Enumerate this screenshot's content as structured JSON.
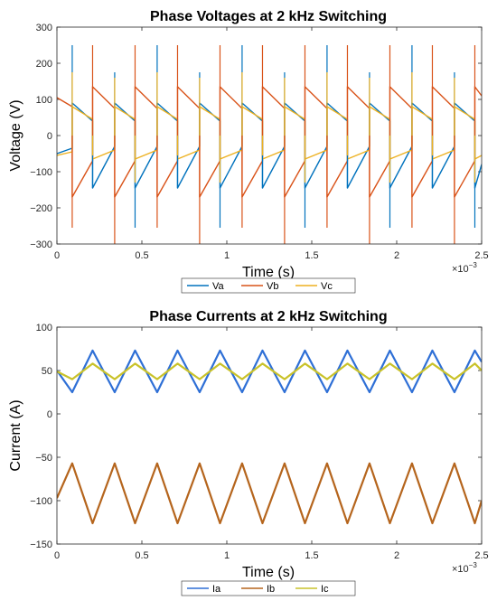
{
  "chart_data": [
    {
      "type": "line",
      "title": "Phase Voltages at 2 kHz Switching",
      "xlabel": "Time (s)",
      "ylabel": "Voltage (V)",
      "x_exponent_label": "×10",
      "x_exponent": "−3",
      "xlim": [
        0,
        2.5
      ],
      "ylim": [
        -300,
        300
      ],
      "xticks": [
        0,
        0.5,
        1,
        1.5,
        2,
        2.5
      ],
      "xtick_labels": [
        "0",
        "0.5",
        "1",
        "1.5",
        "2",
        "2.5"
      ],
      "yticks": [
        -300,
        -200,
        -100,
        0,
        100,
        200,
        300
      ],
      "ytick_labels": [
        "−300",
        "−200",
        "−100",
        "0",
        "100",
        "200",
        "300"
      ],
      "legend_position": "bottom",
      "series": [
        {
          "name": "Va",
          "color": "#0072BD",
          "x": [
            0,
            0.09,
            0.09,
            0.21,
            0.21,
            0.34,
            0.34,
            0.46,
            0.46,
            0.59,
            0.59,
            0.71,
            0.71,
            0.84,
            0.84,
            0.96,
            0.96,
            1.09,
            1.09,
            1.21,
            1.21,
            1.34,
            1.34,
            1.46,
            1.46,
            1.59,
            1.59,
            1.71,
            1.71,
            1.84,
            1.84,
            1.96,
            1.96,
            2.09,
            2.09,
            2.21,
            2.21,
            2.34,
            2.34,
            2.46,
            2.46,
            2.5
          ],
          "y": [
            -50,
            -35,
            90,
            40,
            -145,
            -30,
            90,
            40,
            -145,
            -30,
            90,
            40,
            -145,
            -30,
            90,
            40,
            -145,
            -30,
            90,
            40,
            -145,
            -30,
            90,
            40,
            -145,
            -30,
            90,
            40,
            -145,
            -30,
            90,
            40,
            -145,
            -30,
            90,
            40,
            -145,
            -30,
            90,
            40,
            -145,
            -80
          ]
        },
        {
          "name": "Vb",
          "color": "#D95319",
          "x": [
            0,
            0.09,
            0.09,
            0.21,
            0.21,
            0.34,
            0.34,
            0.46,
            0.46,
            0.59,
            0.59,
            0.71,
            0.71,
            0.84,
            0.84,
            0.96,
            0.96,
            1.09,
            1.09,
            1.21,
            1.21,
            1.34,
            1.34,
            1.46,
            1.46,
            1.59,
            1.59,
            1.71,
            1.71,
            1.84,
            1.84,
            1.96,
            1.96,
            2.09,
            2.09,
            2.21,
            2.21,
            2.34,
            2.34,
            2.46,
            2.46,
            2.5
          ],
          "y": [
            105,
            80,
            -170,
            -70,
            135,
            75,
            -170,
            -70,
            135,
            75,
            -170,
            -70,
            135,
            75,
            -170,
            -70,
            135,
            75,
            -170,
            -70,
            135,
            75,
            -170,
            -70,
            135,
            75,
            -170,
            -70,
            135,
            75,
            -170,
            -70,
            135,
            75,
            -170,
            -70,
            135,
            75,
            -170,
            -70,
            135,
            110
          ]
        },
        {
          "name": "Vc",
          "color": "#EDB120",
          "x": [
            0,
            0.09,
            0.09,
            0.21,
            0.21,
            0.34,
            0.34,
            0.46,
            0.46,
            0.59,
            0.59,
            0.71,
            0.71,
            0.84,
            0.84,
            0.96,
            0.96,
            1.09,
            1.09,
            1.21,
            1.21,
            1.34,
            1.34,
            1.46,
            1.46,
            1.59,
            1.59,
            1.71,
            1.71,
            1.84,
            1.84,
            1.96,
            1.96,
            2.09,
            2.09,
            2.21,
            2.21,
            2.34,
            2.34,
            2.46,
            2.46,
            2.5
          ],
          "y": [
            -55,
            -45,
            80,
            45,
            -65,
            -40,
            80,
            45,
            -65,
            -40,
            80,
            45,
            -65,
            -40,
            80,
            45,
            -65,
            -40,
            80,
            45,
            -65,
            -40,
            80,
            45,
            -65,
            -40,
            80,
            45,
            -65,
            -40,
            80,
            45,
            -65,
            -40,
            80,
            45,
            -65,
            -40,
            80,
            45,
            -65,
            -55
          ]
        }
      ],
      "spikes": [
        {
          "x": 0.09,
          "series": "Va",
          "y": 250
        },
        {
          "x": 0.09,
          "series": "Vb",
          "y": -255
        },
        {
          "x": 0.09,
          "series": "Vc",
          "y": 175
        },
        {
          "x": 0.21,
          "series": "Va",
          "y": -145
        },
        {
          "x": 0.21,
          "series": "Vb",
          "y": 250
        },
        {
          "x": 0.21,
          "series": "Vc",
          "y": -55
        },
        {
          "x": 0.34,
          "series": "Va",
          "y": 175
        },
        {
          "x": 0.34,
          "series": "Vb",
          "y": -300
        },
        {
          "x": 0.34,
          "series": "Vc",
          "y": 160
        },
        {
          "x": 0.46,
          "series": "Va",
          "y": -255
        },
        {
          "x": 0.46,
          "series": "Vb",
          "y": 250
        },
        {
          "x": 0.46,
          "series": "Vc",
          "y": -130
        },
        {
          "x": 0.59,
          "series": "Va",
          "y": 250
        },
        {
          "x": 0.59,
          "series": "Vb",
          "y": -255
        },
        {
          "x": 0.59,
          "series": "Vc",
          "y": 175
        },
        {
          "x": 0.71,
          "series": "Va",
          "y": -145
        },
        {
          "x": 0.71,
          "series": "Vb",
          "y": 250
        },
        {
          "x": 0.71,
          "series": "Vc",
          "y": -55
        },
        {
          "x": 0.84,
          "series": "Va",
          "y": 175
        },
        {
          "x": 0.84,
          "series": "Vb",
          "y": -300
        },
        {
          "x": 0.84,
          "series": "Vc",
          "y": 160
        },
        {
          "x": 0.96,
          "series": "Va",
          "y": -255
        },
        {
          "x": 0.96,
          "series": "Vb",
          "y": 250
        },
        {
          "x": 0.96,
          "series": "Vc",
          "y": -130
        },
        {
          "x": 1.09,
          "series": "Va",
          "y": 250
        },
        {
          "x": 1.09,
          "series": "Vb",
          "y": -255
        },
        {
          "x": 1.09,
          "series": "Vc",
          "y": 175
        },
        {
          "x": 1.21,
          "series": "Va",
          "y": -145
        },
        {
          "x": 1.21,
          "series": "Vb",
          "y": 250
        },
        {
          "x": 1.21,
          "series": "Vc",
          "y": -55
        },
        {
          "x": 1.34,
          "series": "Va",
          "y": 175
        },
        {
          "x": 1.34,
          "series": "Vb",
          "y": -300
        },
        {
          "x": 1.34,
          "series": "Vc",
          "y": 160
        },
        {
          "x": 1.46,
          "series": "Va",
          "y": -255
        },
        {
          "x": 1.46,
          "series": "Vb",
          "y": 250
        },
        {
          "x": 1.46,
          "series": "Vc",
          "y": -130
        },
        {
          "x": 1.59,
          "series": "Va",
          "y": 250
        },
        {
          "x": 1.59,
          "series": "Vb",
          "y": -255
        },
        {
          "x": 1.59,
          "series": "Vc",
          "y": 175
        },
        {
          "x": 1.71,
          "series": "Va",
          "y": -145
        },
        {
          "x": 1.71,
          "series": "Vb",
          "y": 250
        },
        {
          "x": 1.71,
          "series": "Vc",
          "y": -55
        },
        {
          "x": 1.84,
          "series": "Va",
          "y": 175
        },
        {
          "x": 1.84,
          "series": "Vb",
          "y": -300
        },
        {
          "x": 1.84,
          "series": "Vc",
          "y": 160
        },
        {
          "x": 1.96,
          "series": "Va",
          "y": -255
        },
        {
          "x": 1.96,
          "series": "Vb",
          "y": 250
        },
        {
          "x": 1.96,
          "series": "Vc",
          "y": -130
        },
        {
          "x": 2.09,
          "series": "Va",
          "y": 250
        },
        {
          "x": 2.09,
          "series": "Vb",
          "y": -255
        },
        {
          "x": 2.09,
          "series": "Vc",
          "y": 175
        },
        {
          "x": 2.21,
          "series": "Va",
          "y": -145
        },
        {
          "x": 2.21,
          "series": "Vb",
          "y": 250
        },
        {
          "x": 2.21,
          "series": "Vc",
          "y": -55
        },
        {
          "x": 2.34,
          "series": "Va",
          "y": 175
        },
        {
          "x": 2.34,
          "series": "Vb",
          "y": -300
        },
        {
          "x": 2.34,
          "series": "Vc",
          "y": 160
        },
        {
          "x": 2.46,
          "series": "Va",
          "y": -255
        },
        {
          "x": 2.46,
          "series": "Vb",
          "y": 250
        },
        {
          "x": 2.46,
          "series": "Vc",
          "y": -130
        }
      ]
    },
    {
      "type": "line",
      "title": "Phase Currents at 2 kHz Switching",
      "xlabel": "Time (s)",
      "ylabel": "Current (A)",
      "x_exponent_label": "×10",
      "x_exponent": "−3",
      "xlim": [
        0,
        2.5
      ],
      "ylim": [
        -150,
        100
      ],
      "xticks": [
        0,
        0.5,
        1,
        1.5,
        2,
        2.5
      ],
      "xtick_labels": [
        "0",
        "0.5",
        "1",
        "1.5",
        "2",
        "2.5"
      ],
      "yticks": [
        -150,
        -100,
        -50,
        0,
        50,
        100
      ],
      "ytick_labels": [
        "−150",
        "−100",
        "−50",
        "0",
        "50",
        "100"
      ],
      "legend_position": "bottom",
      "series": [
        {
          "name": "Ia",
          "color": "#2E6FD6",
          "x": [
            0,
            0.09,
            0.21,
            0.34,
            0.46,
            0.59,
            0.71,
            0.84,
            0.96,
            1.09,
            1.21,
            1.34,
            1.46,
            1.59,
            1.71,
            1.84,
            1.96,
            2.09,
            2.21,
            2.34,
            2.46,
            2.5
          ],
          "y": [
            50,
            25,
            73,
            25,
            73,
            25,
            73,
            25,
            73,
            25,
            73,
            25,
            73,
            25,
            73,
            25,
            73,
            25,
            73,
            25,
            73,
            60
          ]
        },
        {
          "name": "Ib",
          "color": "#B5651D",
          "x": [
            0,
            0.09,
            0.21,
            0.34,
            0.46,
            0.59,
            0.71,
            0.84,
            0.96,
            1.09,
            1.21,
            1.34,
            1.46,
            1.59,
            1.71,
            1.84,
            1.96,
            2.09,
            2.21,
            2.34,
            2.46,
            2.5
          ],
          "y": [
            -97,
            -57,
            -126,
            -57,
            -126,
            -57,
            -126,
            -57,
            -126,
            -57,
            -126,
            -57,
            -126,
            -57,
            -126,
            -57,
            -126,
            -57,
            -126,
            -57,
            -126,
            -100
          ]
        },
        {
          "name": "Ic",
          "color": "#C9C22A",
          "x": [
            0,
            0.09,
            0.21,
            0.34,
            0.46,
            0.59,
            0.71,
            0.84,
            0.96,
            1.09,
            1.21,
            1.34,
            1.46,
            1.59,
            1.71,
            1.84,
            1.96,
            2.09,
            2.21,
            2.34,
            2.46,
            2.5
          ],
          "y": [
            49,
            40,
            58,
            40,
            58,
            40,
            58,
            40,
            58,
            40,
            58,
            40,
            58,
            40,
            58,
            40,
            58,
            40,
            58,
            40,
            58,
            50
          ]
        }
      ]
    }
  ]
}
